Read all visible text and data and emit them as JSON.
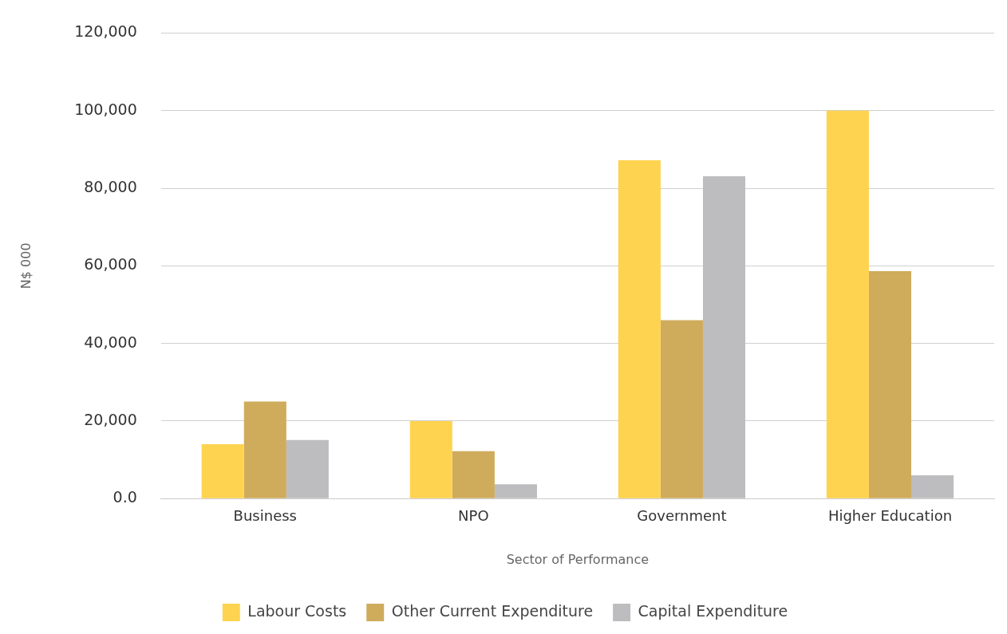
{
  "chart_data": {
    "type": "bar",
    "xlabel": "Sector of Performance",
    "ylabel": "N$ 000",
    "categories": [
      "Business",
      "NPO",
      "Government",
      "Higher Education"
    ],
    "series": [
      {
        "name": "Labour Costs",
        "color": "#fed350",
        "values": [
          14000,
          20000,
          87200,
          100000
        ]
      },
      {
        "name": "Other Current Expenditure",
        "color": "#cfab5c",
        "values": [
          25000,
          12200,
          46000,
          58600
        ]
      },
      {
        "name": "Capital Expenditure",
        "color": "#bdbdbf",
        "values": [
          15100,
          3700,
          83100,
          6000
        ]
      }
    ],
    "ylim": [
      0,
      120000
    ],
    "yticks": [
      {
        "value": 0,
        "label": "0.0"
      },
      {
        "value": 20000,
        "label": "20,000"
      },
      {
        "value": 40000,
        "label": "40,000"
      },
      {
        "value": 60000,
        "label": "60,000"
      },
      {
        "value": 80000,
        "label": "80,000"
      },
      {
        "value": 100000,
        "label": "100,000"
      },
      {
        "value": 120000,
        "label": "120,000"
      }
    ],
    "grid": "y",
    "legend": "bottom"
  }
}
